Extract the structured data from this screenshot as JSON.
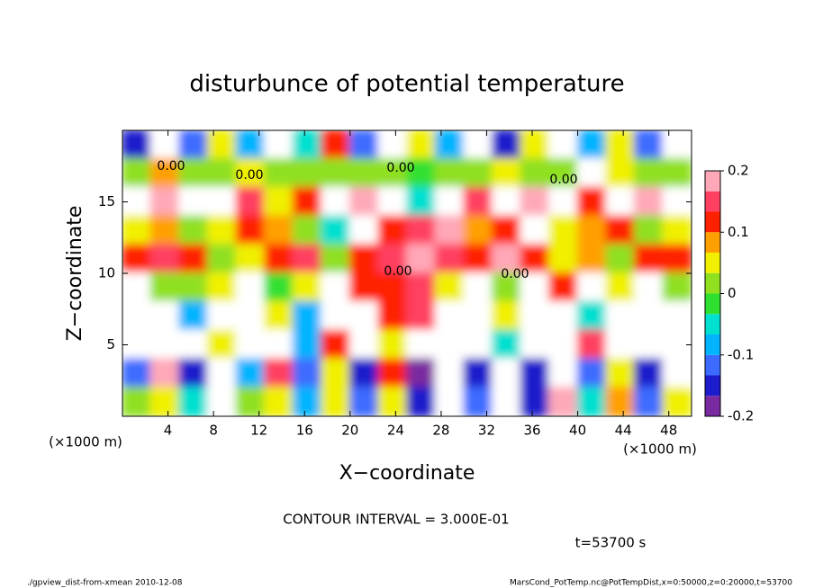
{
  "chart_data": {
    "type": "heatmap",
    "title": "disturbunce of potential temperature",
    "xlabel": "X−coordinate",
    "ylabel": "Z−coordinate",
    "xunit": "(×1000 m)",
    "yunit": "(×1000 m)",
    "contour_note": "CONTOUR INTERVAL = 3.000E-01",
    "time_note": "t=53700 s",
    "footer_left": "./gpview_dist-from-xmean  2010-12-08",
    "footer_right": "MarsCond_PotTemp.nc@PotTempDist,x=0:50000,z=0:20000,t=53700",
    "annotations": [
      "0.00",
      "0.00",
      "0.00",
      "0.00",
      "0.00",
      "0.00"
    ],
    "xlim": [
      0,
      50
    ],
    "ylim": [
      0,
      20
    ],
    "xticks": [
      4,
      8,
      12,
      16,
      20,
      24,
      28,
      32,
      36,
      40,
      44,
      48
    ],
    "yticks": [
      5,
      10,
      15
    ],
    "x": [
      1.25,
      3.75,
      6.25,
      8.75,
      11.25,
      13.75,
      16.25,
      18.75,
      21.25,
      23.75,
      26.25,
      28.75,
      31.25,
      33.75,
      36.25,
      38.75,
      41.25,
      43.75,
      46.25,
      48.75
    ],
    "y": [
      19,
      17,
      15,
      13,
      11,
      9,
      7,
      5,
      3,
      1
    ],
    "z": [
      [
        -0.15,
        0.22,
        -0.12,
        0.05,
        -0.1,
        0.22,
        -0.05,
        0.1,
        -0.12,
        0.22,
        0.05,
        -0.1,
        0.22,
        -0.15,
        0.05,
        0.22,
        -0.1,
        0.05,
        -0.12,
        0.22
      ],
      [
        0.02,
        0.08,
        0.03,
        0.0,
        0.05,
        0.02,
        0.0,
        0.03,
        0.0,
        0.02,
        -0.02,
        0.0,
        0.03,
        0.05,
        0.0,
        0.02,
        0.22,
        0.05,
        0.03,
        0.0
      ],
      [
        0.22,
        0.18,
        0.22,
        0.22,
        0.15,
        0.05,
        0.12,
        0.22,
        0.2,
        0.22,
        -0.05,
        0.22,
        0.15,
        0.22,
        0.18,
        0.22,
        0.1,
        0.22,
        0.2,
        0.22
      ],
      [
        0.05,
        0.08,
        0.03,
        0.06,
        0.1,
        0.08,
        0.02,
        -0.05,
        0.22,
        0.12,
        0.15,
        0.2,
        0.08,
        0.1,
        0.22,
        0.05,
        0.08,
        0.12,
        0.03,
        0.05
      ],
      [
        0.12,
        0.15,
        0.1,
        0.02,
        0.05,
        0.12,
        0.15,
        0.0,
        0.1,
        0.15,
        0.18,
        0.15,
        0.12,
        0.2,
        0.1,
        0.05,
        0.08,
        0.03,
        0.1,
        0.12
      ],
      [
        0.22,
        0.03,
        0.0,
        0.05,
        0.22,
        -0.03,
        0.05,
        0.22,
        0.1,
        0.12,
        0.15,
        0.05,
        0.22,
        0.0,
        0.22,
        0.1,
        0.22,
        0.05,
        0.22,
        0.0
      ],
      [
        0.22,
        0.22,
        -0.08,
        0.22,
        0.22,
        0.05,
        -0.1,
        0.22,
        0.22,
        0.1,
        0.15,
        0.22,
        0.22,
        0.05,
        0.22,
        0.22,
        -0.05,
        0.22,
        0.22,
        0.22
      ],
      [
        0.22,
        0.22,
        0.22,
        0.05,
        0.22,
        0.22,
        -0.08,
        0.1,
        0.22,
        0.05,
        0.22,
        0.22,
        0.22,
        -0.05,
        0.22,
        0.22,
        0.15,
        0.22,
        0.22,
        0.22
      ],
      [
        -0.12,
        0.2,
        -0.15,
        0.22,
        -0.1,
        0.15,
        -0.12,
        0.05,
        -0.15,
        0.1,
        -0.18,
        0.22,
        -0.15,
        0.22,
        -0.15,
        0.22,
        -0.12,
        0.05,
        -0.15,
        0.22
      ],
      [
        0.0,
        0.05,
        -0.05,
        0.22,
        0.02,
        0.05,
        -0.08,
        0.05,
        -0.12,
        0.05,
        -0.15,
        0.22,
        -0.12,
        0.22,
        -0.15,
        0.2,
        -0.05,
        0.08,
        -0.12,
        0.05
      ]
    ],
    "colorbar_lim": [
      -0.2,
      0.2
    ],
    "colorbar_ticks": [
      -0.2,
      -0.1,
      0,
      0.1,
      0.2
    ],
    "colorscale": [
      "#7a2aa0",
      "#1c1ccc",
      "#3c6cff",
      "#00b4ff",
      "#00e0d0",
      "#30e030",
      "#90e020",
      "#f0f000",
      "#ffa000",
      "#ff2000",
      "#ff4060",
      "#ffa8b8"
    ],
    "over_color": "#ffffff"
  }
}
